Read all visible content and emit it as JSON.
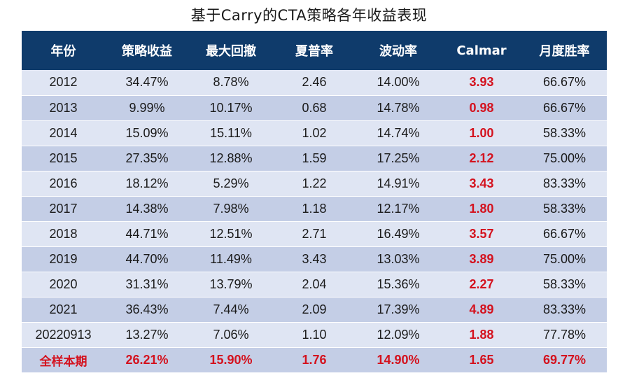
{
  "title": "基于Carry的CTA策略各年收益表现",
  "table": {
    "headers": [
      "年份",
      "策略收益",
      "最大回撤",
      "夏普率",
      "波动率",
      "Calmar",
      "月度胜率"
    ],
    "rows": [
      [
        "2012",
        "34.47%",
        "8.78%",
        "2.46",
        "14.00%",
        "3.93",
        "66.67%"
      ],
      [
        "2013",
        "9.99%",
        "10.17%",
        "0.68",
        "14.78%",
        "0.98",
        "66.67%"
      ],
      [
        "2014",
        "15.09%",
        "15.11%",
        "1.02",
        "14.74%",
        "1.00",
        "58.33%"
      ],
      [
        "2015",
        "27.35%",
        "12.88%",
        "1.59",
        "17.25%",
        "2.12",
        "75.00%"
      ],
      [
        "2016",
        "18.12%",
        "5.29%",
        "1.22",
        "14.91%",
        "3.43",
        "83.33%"
      ],
      [
        "2017",
        "14.38%",
        "7.98%",
        "1.18",
        "12.17%",
        "1.80",
        "58.33%"
      ],
      [
        "2018",
        "44.71%",
        "12.51%",
        "2.71",
        "16.49%",
        "3.57",
        "66.67%"
      ],
      [
        "2019",
        "44.70%",
        "11.49%",
        "3.43",
        "13.03%",
        "3.89",
        "75.00%"
      ],
      [
        "2020",
        "31.31%",
        "13.79%",
        "2.04",
        "15.36%",
        "2.27",
        "58.33%"
      ],
      [
        "2021",
        "36.43%",
        "7.44%",
        "2.09",
        "17.39%",
        "4.89",
        "83.33%"
      ],
      [
        "20220913",
        "13.27%",
        "7.06%",
        "1.10",
        "12.09%",
        "1.88",
        "77.78%"
      ]
    ],
    "summary": [
      "全样本期",
      "26.21%",
      "15.90%",
      "1.76",
      "14.90%",
      "1.65",
      "69.77%"
    ]
  },
  "colors": {
    "header_bg": "#0f3b6b",
    "row_light": "#dfe5f3",
    "row_dark": "#c4cee6",
    "highlight_red": "#d4121e"
  }
}
